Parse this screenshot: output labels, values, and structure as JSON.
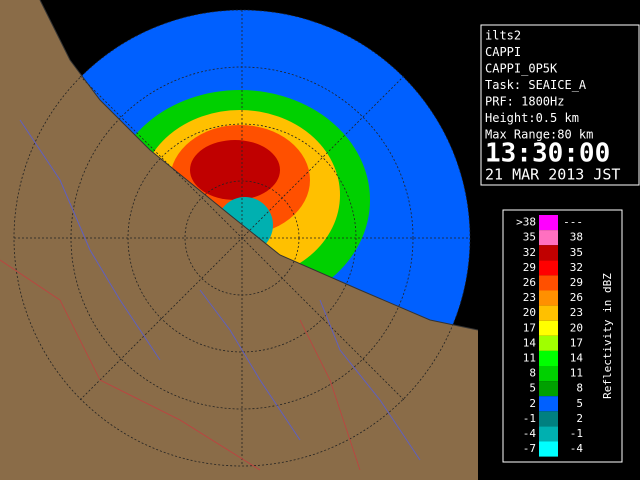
{
  "info": {
    "lines": [
      "ilts2",
      "CAPPI",
      "CAPPI_0P5K",
      "Task: SEAICE_A",
      "PRF: 1800Hz",
      "Height:0.5 km",
      "Max Range:80 km"
    ],
    "time": "13:30:00",
    "date": "21 MAR 2013 JST"
  },
  "legend": {
    "title": "Reflectivity in dBZ",
    "rows": [
      {
        "low": ">38",
        "high": "---",
        "color": "#ff00ff"
      },
      {
        "low": "35",
        "high": "38",
        "color": "#ff70c0"
      },
      {
        "low": "32",
        "high": "35",
        "color": "#c00000"
      },
      {
        "low": "29",
        "high": "32",
        "color": "#ff0000"
      },
      {
        "low": "26",
        "high": "29",
        "color": "#ff5000"
      },
      {
        "low": "23",
        "high": "26",
        "color": "#ff9000"
      },
      {
        "low": "20",
        "high": "23",
        "color": "#ffc000"
      },
      {
        "low": "17",
        "high": "20",
        "color": "#ffff00"
      },
      {
        "low": "14",
        "high": "17",
        "color": "#a0ff00"
      },
      {
        "low": "11",
        "high": "14",
        "color": "#00ff00"
      },
      {
        "low": "8",
        "high": "11",
        "color": "#00d000"
      },
      {
        "low": "5",
        "high": "8",
        "color": "#00a000"
      },
      {
        "low": "2",
        "high": "5",
        "color": "#0060ff"
      },
      {
        "low": "-1",
        "high": "2",
        "color": "#008080"
      },
      {
        "low": "-4",
        "high": "-1",
        "color": "#00b0b0"
      },
      {
        "low": "-7",
        "high": "-4",
        "color": "#00ffff"
      }
    ]
  }
}
